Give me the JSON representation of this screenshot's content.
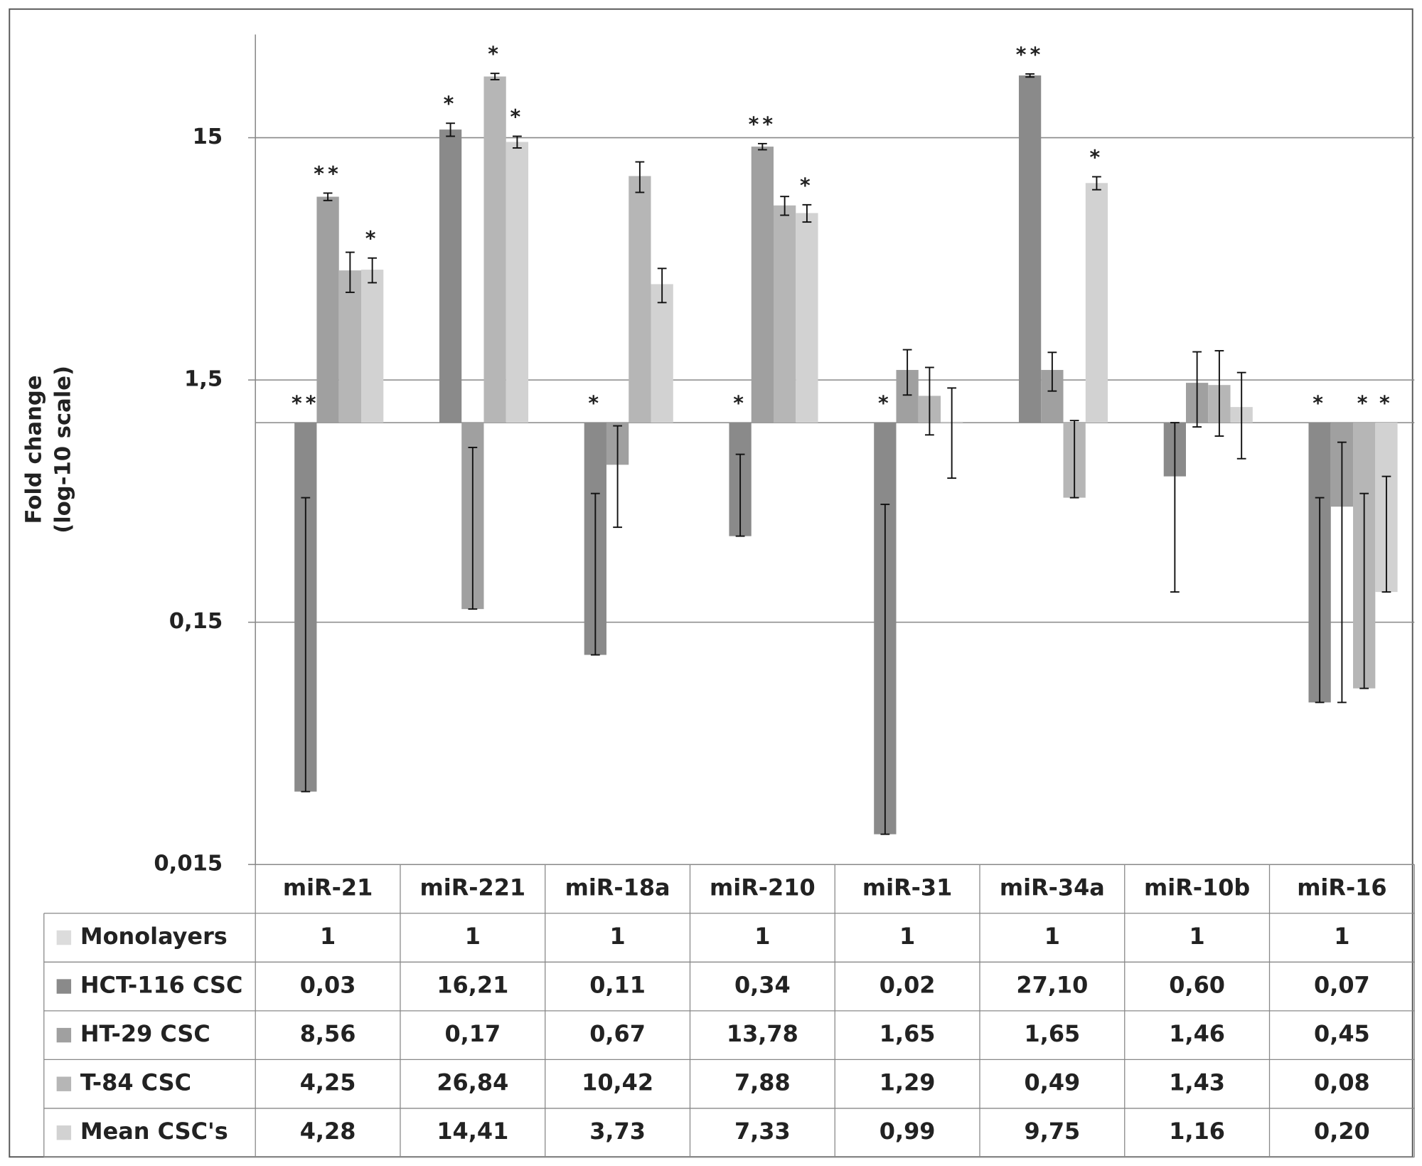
{
  "chart_data": {
    "type": "bar",
    "y_label": [
      "Fold change",
      "(log-10 scale)"
    ],
    "log_scale": true,
    "ylim": [
      0.015,
      40
    ],
    "y_cross": 1,
    "yticks": [
      {
        "value": 0.015,
        "label": "0,015"
      },
      {
        "value": 0.15,
        "label": "0,15"
      },
      {
        "value": 1.5,
        "label": "1,5"
      },
      15
    ],
    "grid": true,
    "categories": [
      "miR-21",
      "miR-221",
      "miR-18a",
      "miR-210",
      "miR-31",
      "miR-34a",
      "miR-10b",
      "miR-16"
    ],
    "series": [
      {
        "name": "Monolayers",
        "color": "#dcdcdc",
        "values": [
          1,
          1,
          1,
          1,
          1,
          1,
          1,
          1
        ]
      },
      {
        "name": "HCT-116 CSC",
        "color": "#8a8a8a",
        "values": [
          0.03,
          16.21,
          0.11,
          0.34,
          0.02,
          27.1,
          0.6,
          0.07
        ],
        "value_labels": [
          "0,03",
          "16,21",
          "0,11",
          "0,34",
          "0,02",
          "27,10",
          "0,60",
          "0,07"
        ],
        "errors": [
          0.46,
          1,
          0.4,
          0.4,
          0.44,
          0.4,
          0.4,
          0.42
        ],
        "significance": [
          "**",
          "*",
          "*",
          "*",
          "*",
          "**",
          null,
          "*"
        ]
      },
      {
        "name": "HT-29 CSC",
        "color": "#a0a0a0",
        "values": [
          8.56,
          0.17,
          0.67,
          13.78,
          1.65,
          1.65,
          1.46,
          0.45
        ],
        "value_labels": [
          "8,56",
          "0,17",
          "0,67",
          "13,78",
          "1,65",
          "1,65",
          "1,46",
          "0,45"
        ],
        "errors": [
          0.3,
          0.62,
          0.3,
          0.4,
          0.35,
          0.3,
          0.5,
          0.38
        ],
        "significance": [
          "**",
          null,
          null,
          "**",
          null,
          null,
          null,
          null
        ]
      },
      {
        "name": "T-84 CSC",
        "color": "#b6b6b6",
        "values": [
          4.25,
          26.84,
          10.42,
          7.88,
          1.29,
          0.49,
          1.43,
          0.08
        ],
        "value_labels": [
          "4,25",
          "26,84",
          "10,42",
          "7,88",
          "1,29",
          "0,49",
          "1,43",
          "0,08"
        ],
        "errors": [
          0.8,
          0.8,
          1.5,
          0.7,
          0.4,
          0.53,
          0.55,
          0.43
        ],
        "significance": [
          null,
          "*",
          null,
          null,
          null,
          null,
          null,
          "*"
        ]
      },
      {
        "name": "Mean CSC's",
        "color": "#d2d2d2",
        "values": [
          4.28,
          14.41,
          3.73,
          7.33,
          0.99,
          9.75,
          1.16,
          0.2
        ],
        "value_labels": [
          "4,28",
          "14,41",
          "3,73",
          "7,33",
          "0,99",
          "9,75",
          "1,16",
          "0,20"
        ],
        "errors": [
          0.5,
          0.8,
          0.6,
          0.6,
          0.4,
          0.6,
          0.45,
          0.4
        ],
        "significance": [
          "*",
          "*",
          null,
          "*",
          null,
          "*",
          null,
          "*"
        ]
      }
    ]
  }
}
